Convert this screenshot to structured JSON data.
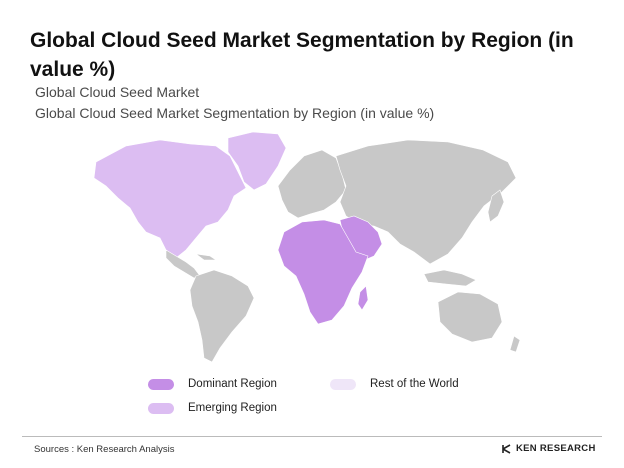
{
  "header": {
    "title": "Global Cloud Seed Market Segmentation by Region (in value %)",
    "subtitle_1": "Global Cloud Seed Market",
    "subtitle_2": "Global Cloud Seed Market Segmentation by Region (in value %)"
  },
  "legend": {
    "dominant": {
      "label": "Dominant Region",
      "color": "#c48ee6"
    },
    "emerging": {
      "label": "Emerging Region",
      "color": "#dcbdf2"
    },
    "rest": {
      "label": "Rest of the World",
      "color": "#efe6f8"
    }
  },
  "map": {
    "base_color": "#c8c8c8",
    "regions": [
      {
        "name": "North America",
        "category": "emerging"
      },
      {
        "name": "Middle East & Africa",
        "category": "dominant"
      },
      {
        "name": "South America",
        "category": "rest"
      },
      {
        "name": "Europe",
        "category": "rest"
      },
      {
        "name": "Asia",
        "category": "rest"
      },
      {
        "name": "Oceania",
        "category": "rest"
      }
    ]
  },
  "footer": {
    "source": "Sources : Ken Research Analysis",
    "brand": "KEN RESEARCH",
    "brand_icon": "ken-research-logo-icon"
  }
}
